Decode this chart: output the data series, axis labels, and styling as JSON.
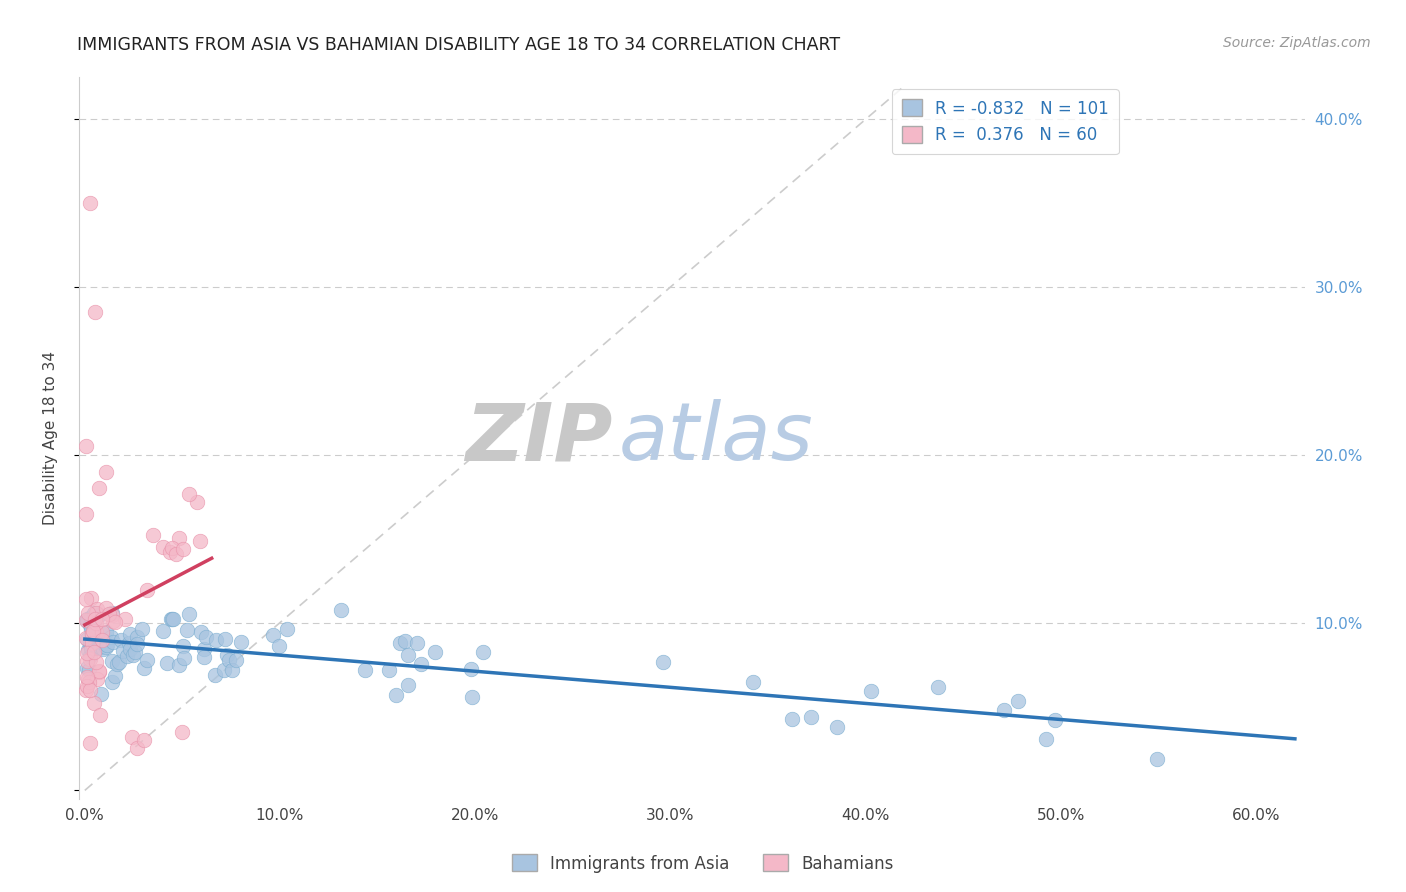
{
  "title": "IMMIGRANTS FROM ASIA VS BAHAMIAN DISABILITY AGE 18 TO 34 CORRELATION CHART",
  "source": "Source: ZipAtlas.com",
  "ylabel": "Disability Age 18 to 34",
  "xlim": [
    -0.003,
    0.625
  ],
  "ylim": [
    -0.005,
    0.425
  ],
  "blue_color": "#a8c4e0",
  "blue_edge_color": "#7aadd0",
  "pink_color": "#f4b8c8",
  "pink_edge_color": "#e890a8",
  "blue_line_color": "#2e75b6",
  "pink_line_color": "#d04060",
  "diagonal_color": "#cccccc",
  "R_blue": -0.832,
  "N_blue": 101,
  "R_pink": 0.376,
  "N_pink": 60,
  "legend_label_blue": "Immigrants from Asia",
  "legend_label_pink": "Bahamians",
  "watermark_zip_color": "#c8c8c8",
  "watermark_atlas_color": "#b8cce4",
  "background_color": "#ffffff",
  "grid_color": "#cccccc",
  "title_color": "#222222",
  "source_color": "#999999",
  "axis_label_color": "#444444",
  "right_tick_color": "#5b9bd5",
  "legend_text_color": "#2e75b6"
}
